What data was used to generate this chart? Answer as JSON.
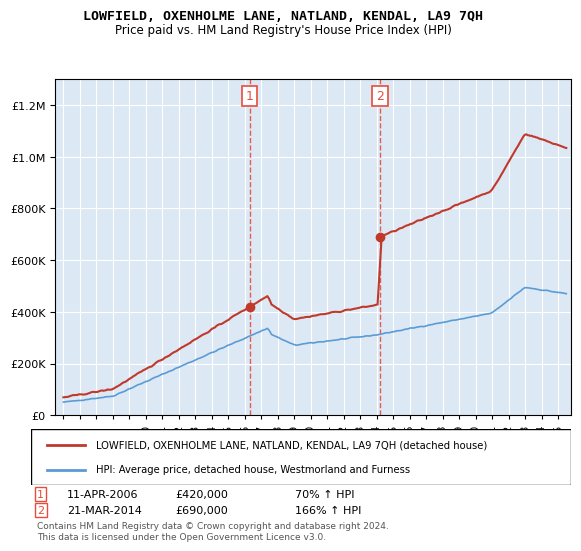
{
  "title1": "LOWFIELD, OXENHOLME LANE, NATLAND, KENDAL, LA9 7QH",
  "title2": "Price paid vs. HM Land Registry's House Price Index (HPI)",
  "legend_line1": "LOWFIELD, OXENHOLME LANE, NATLAND, KENDAL, LA9 7QH (detached house)",
  "legend_line2": "HPI: Average price, detached house, Westmorland and Furness",
  "sale1_label": "1",
  "sale1_date": "11-APR-2006",
  "sale1_price": 420000,
  "sale1_pct": "70% ↑ HPI",
  "sale2_label": "2",
  "sale2_date": "21-MAR-2014",
  "sale2_price": 690000,
  "sale2_pct": "166% ↑ HPI",
  "footer": "Contains HM Land Registry data © Crown copyright and database right 2024.\nThis data is licensed under the Open Government Licence v3.0.",
  "red_color": "#c0392b",
  "blue_color": "#5b9bd5",
  "sale_marker_color": "#c0392b",
  "vline_color": "#e74c3c",
  "bg_plot": "#dce9f5",
  "ylim": [
    0,
    1300000
  ],
  "xlabel": "",
  "ylabel": ""
}
